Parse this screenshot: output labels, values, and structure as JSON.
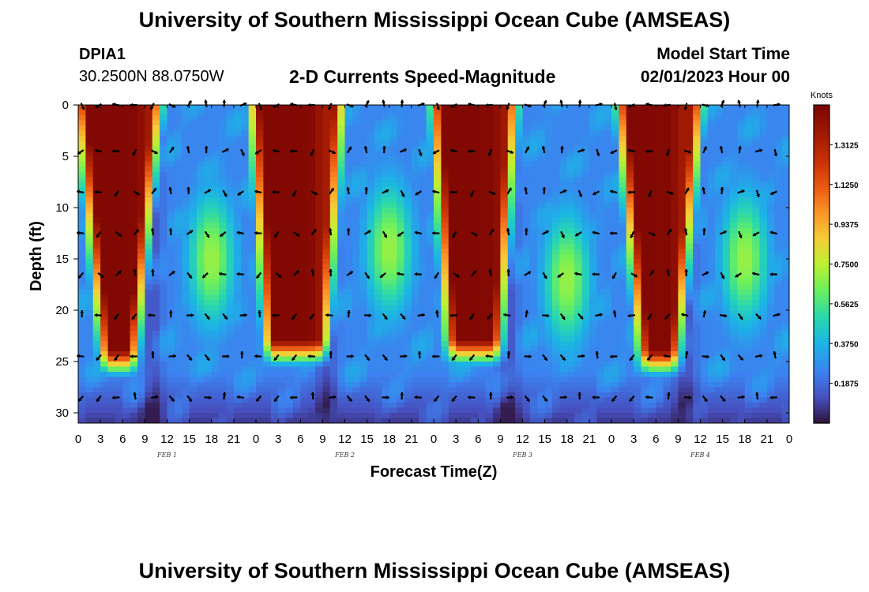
{
  "header": {
    "title": "University of Southern Mississippi Ocean Cube (AMSEAS)",
    "station_id": "DPIA1",
    "station_coords": "30.2500N  88.0750W",
    "chart_title": "2-D Currents Speed-Magnitude",
    "start_label": "Model Start Time",
    "start_time": "02/01/2023 Hour 00"
  },
  "footer": {
    "title": "University of Southern Mississippi Ocean Cube (AMSEAS)"
  },
  "chart_data": {
    "type": "heatmap",
    "title": "2-D Currents Speed-Magnitude",
    "xlabel": "Forecast Time(Z)",
    "ylabel": "Depth (ft)",
    "x_range_hours": [
      0,
      96
    ],
    "y_range_ft": [
      0,
      31
    ],
    "x_tick_hours": [
      0,
      3,
      6,
      9,
      12,
      15,
      18,
      21,
      24,
      27,
      30,
      33,
      36,
      39,
      42,
      45,
      48,
      51,
      54,
      57,
      60,
      63,
      66,
      69,
      72,
      75,
      78,
      81,
      84,
      87,
      90,
      93,
      96
    ],
    "x_tick_labels": [
      "0",
      "3",
      "6",
      "9",
      "12",
      "15",
      "18",
      "21",
      "0",
      "3",
      "6",
      "9",
      "12",
      "15",
      "18",
      "21",
      "0",
      "3",
      "6",
      "9",
      "12",
      "15",
      "18",
      "21",
      "0",
      "3",
      "6",
      "9",
      "12",
      "15",
      "18",
      "21",
      "0"
    ],
    "day_labels": [
      {
        "label": "FEB 1",
        "hour": 12
      },
      {
        "label": "FEB 2",
        "hour": 36
      },
      {
        "label": "FEB 3",
        "hour": 60
      },
      {
        "label": "FEB 4",
        "hour": 84
      }
    ],
    "y_ticks": [
      0,
      5,
      10,
      15,
      20,
      25,
      30
    ],
    "y_tick_labels": [
      "0",
      "5",
      "10",
      "15",
      "20",
      "25",
      "30"
    ],
    "colorbar": {
      "label": "Knots",
      "min": 0,
      "max": 1.5,
      "ticks": [
        0.1875,
        0.375,
        0.5625,
        0.75,
        0.9375,
        1.125,
        1.3125
      ],
      "tick_labels": [
        "0.1875",
        "0.3750",
        "0.5625",
        "0.7500",
        "0.9375",
        "1.1250",
        "1.3125"
      ]
    },
    "speed_field": {
      "description": "Current speed (knots) by forecast hour and depth; strong surface jets narrowing with depth",
      "jets": [
        {
          "center_hour": 5.5,
          "surface_width_hours": 4.5,
          "bottom_width_hours": 1.2,
          "depth_extent_ft": 24
        },
        {
          "center_hour": 29.5,
          "surface_width_hours": 5,
          "bottom_width_hours": 3,
          "depth_extent_ft": 23
        },
        {
          "center_hour": 53.5,
          "surface_width_hours": 4.5,
          "bottom_width_hours": 2.5,
          "depth_extent_ft": 23
        },
        {
          "center_hour": 78.5,
          "surface_width_hours": 4.5,
          "bottom_width_hours": 1.5,
          "depth_extent_ft": 24
        }
      ],
      "mid_depth_maxima": [
        {
          "center_hour": 18,
          "center_depth_ft": 15
        },
        {
          "center_hour": 42,
          "center_depth_ft": 14
        },
        {
          "center_hour": 66,
          "center_depth_ft": 17
        },
        {
          "center_hour": 90,
          "center_depth_ft": 15
        }
      ]
    },
    "vector_depths_ft": [
      0,
      4.5,
      8.5,
      12.5,
      16.5,
      20.5,
      24.5,
      28.5
    ],
    "vector_hour_step": 2.4
  }
}
